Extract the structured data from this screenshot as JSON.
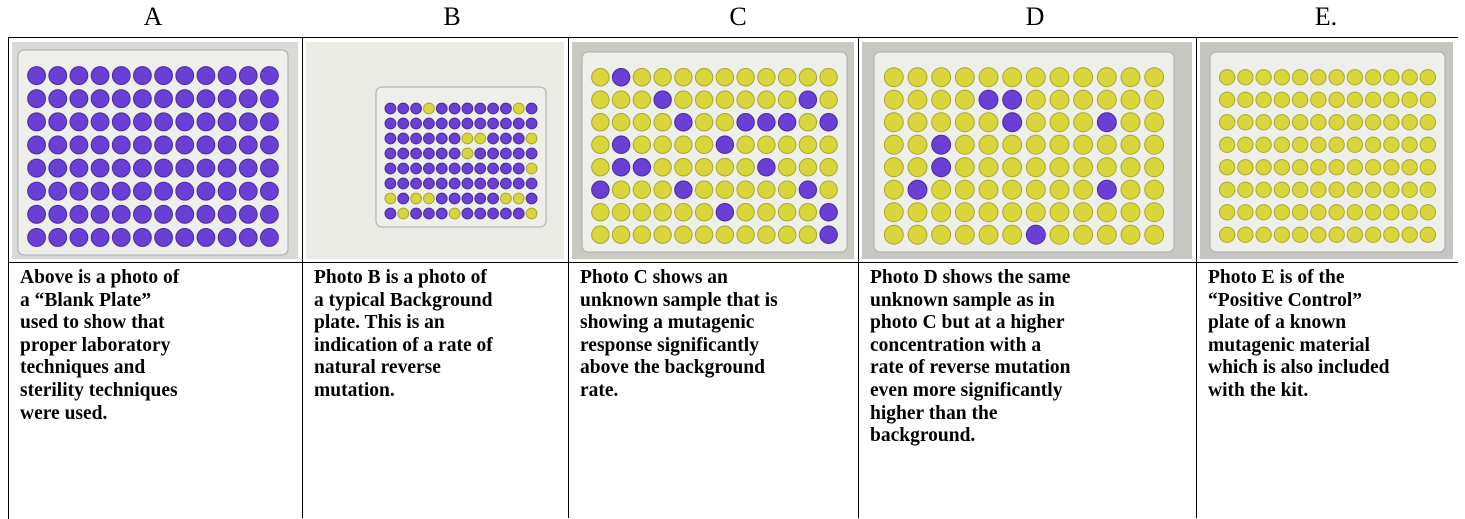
{
  "columns": [
    {
      "label": "A",
      "lines": [
        "Above is a photo of",
        "a “Blank Plate”",
        "used to show that",
        "proper laboratory",
        "techniques and",
        "sterility techniques",
        "were used."
      ]
    },
    {
      "label": "B",
      "lines": [
        "Photo B is a photo of",
        "a typical Background",
        "plate.  This is an",
        "indication of a rate of",
        "natural reverse",
        "mutation."
      ]
    },
    {
      "label": "C",
      "lines": [
        "Photo C shows an",
        "unknown sample that is",
        "showing a mutagenic",
        "response significantly",
        "above the background",
        "rate."
      ]
    },
    {
      "label": "D",
      "lines": [
        "Photo D shows the same",
        "unknown sample as in",
        "photo C but at a higher",
        "concentration with a",
        "rate of reverse mutation",
        "even more significantly",
        "higher than the",
        "background."
      ]
    },
    {
      "label": "E.",
      "lines": [
        "Photo E is of the",
        "“Positive Control”",
        "plate of a known",
        "mutagenic material",
        "which is also included",
        "with the kit."
      ]
    }
  ]
}
